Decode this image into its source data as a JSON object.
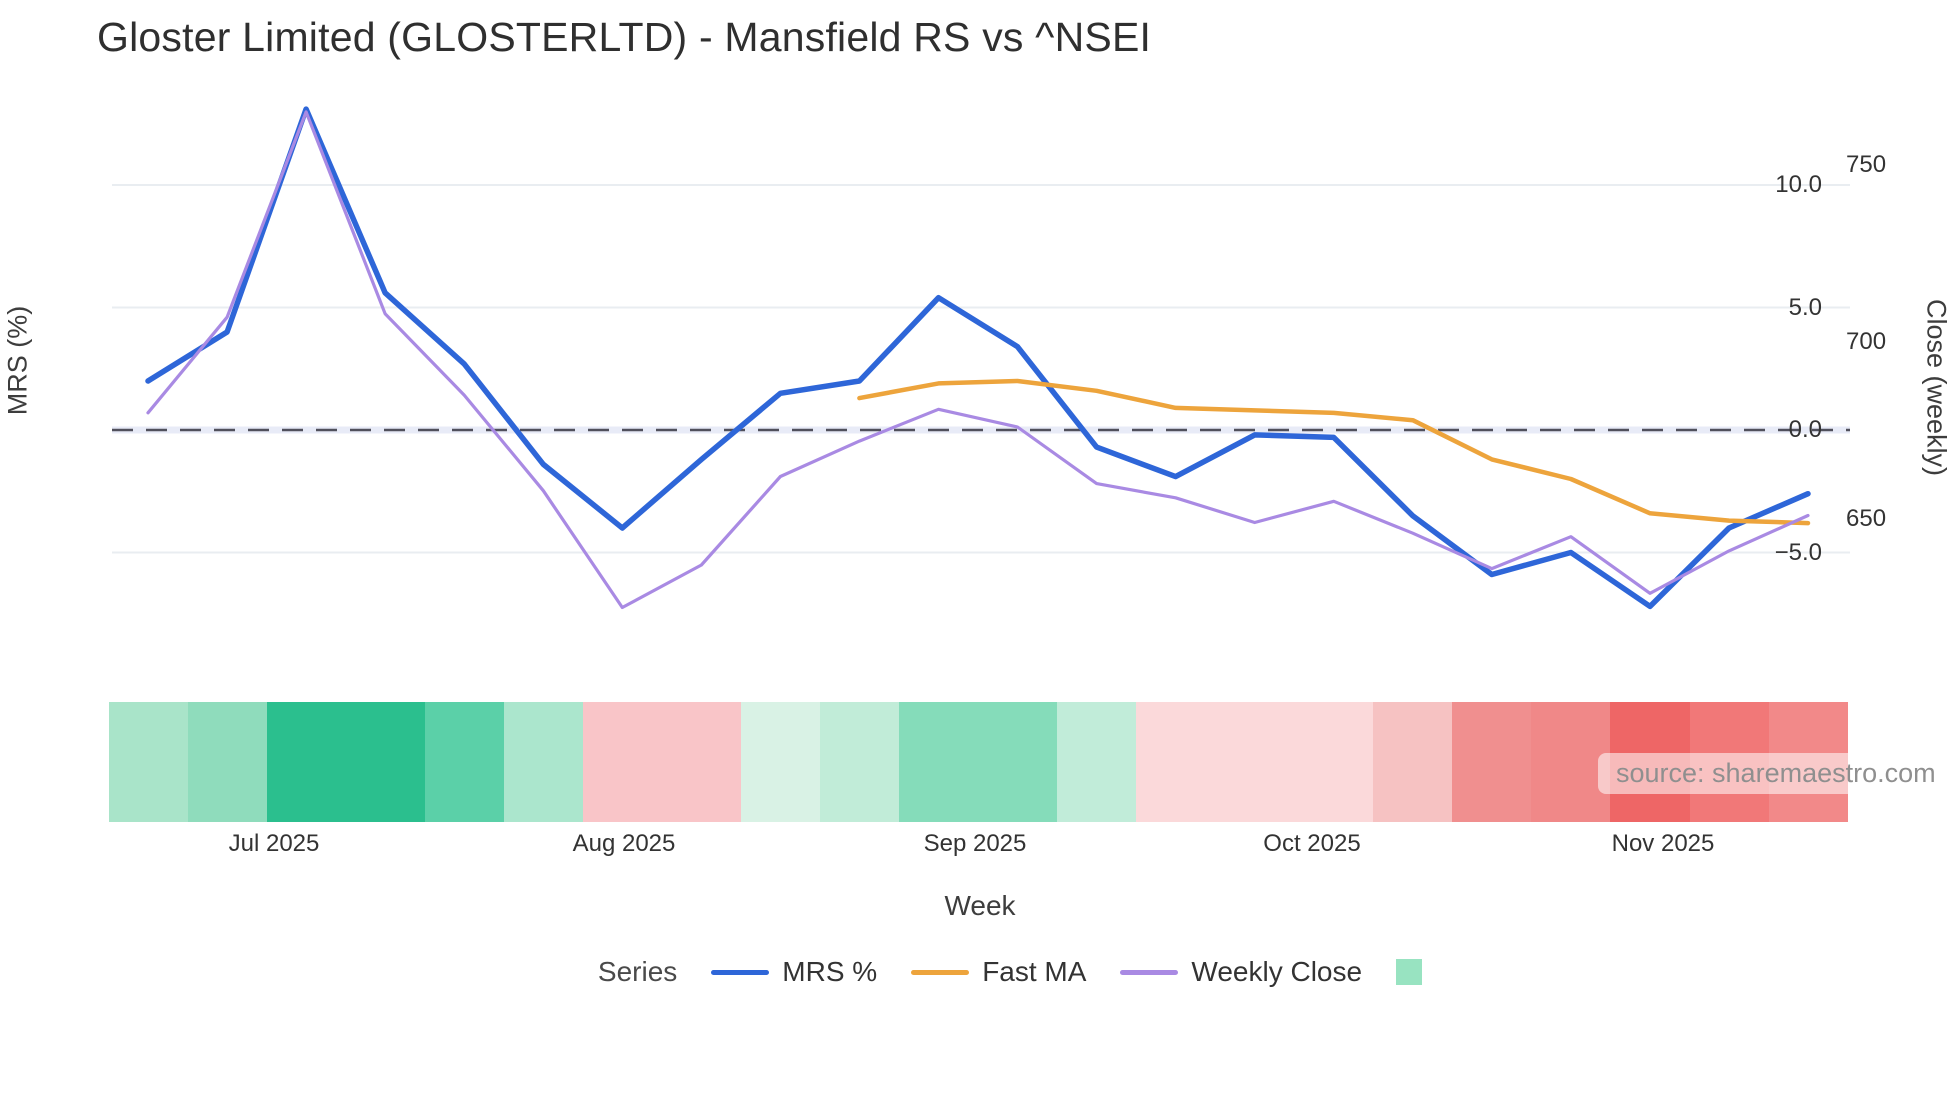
{
  "title": "Gloster Limited (GLOSTERLTD) - Mansfield RS vs ^NSEI",
  "watermark": "source: sharemaestro.com",
  "axes": {
    "left": {
      "title": "MRS (%)",
      "ticks": [
        {
          "label": "10.0",
          "value": 10
        },
        {
          "label": "5.0",
          "value": 5
        },
        {
          "label": "0.0",
          "value": 0
        },
        {
          "label": "−5.0",
          "value": -5
        }
      ]
    },
    "right": {
      "title": "Close (weekly)",
      "ticks": [
        {
          "label": "750",
          "value": 750
        },
        {
          "label": "700",
          "value": 700
        },
        {
          "label": "650",
          "value": 650
        }
      ]
    },
    "x": {
      "title": "Week",
      "ticks": [
        {
          "label": "Jul 2025"
        },
        {
          "label": "Aug 2025"
        },
        {
          "label": "Sep 2025"
        },
        {
          "label": "Oct 2025"
        },
        {
          "label": "Nov 2025"
        }
      ]
    }
  },
  "legend": {
    "title": "Series",
    "items": [
      {
        "label": "MRS %",
        "swatch": "line",
        "color": "#2e66d8"
      },
      {
        "label": "Fast MA",
        "swatch": "line",
        "color": "#eda43c"
      },
      {
        "label": "Weekly Close",
        "swatch": "line",
        "color": "#a98ae3"
      },
      {
        "label": "",
        "swatch": "square",
        "color": "#98e3c1"
      }
    ]
  },
  "chart_data": {
    "type": "line",
    "title": "Gloster Limited (GLOSTERLTD) - Mansfield RS vs ^NSEI",
    "xlabel": "Week",
    "ylabel_left": "MRS (%)",
    "ylabel_right": "Close (weekly)",
    "x_tick_labels": [
      "Jul 2025",
      "Aug 2025",
      "Sep 2025",
      "Oct 2025",
      "Nov 2025"
    ],
    "x_weeks": [
      1,
      2,
      3,
      4,
      5,
      6,
      7,
      8,
      9,
      10,
      11,
      12,
      13,
      14,
      15,
      16,
      17,
      18,
      19,
      20,
      21,
      22
    ],
    "series": [
      {
        "name": "MRS %",
        "axis": "left",
        "color": "#2e66d8",
        "values": [
          2.0,
          4.0,
          13.1,
          5.6,
          2.7,
          -1.4,
          -4.0,
          -1.2,
          1.5,
          2.0,
          5.4,
          3.4,
          -0.7,
          -1.9,
          -0.2,
          -0.3,
          -3.5,
          -5.9,
          -5.0,
          -7.2,
          -4.0,
          -2.6
        ]
      },
      {
        "name": "Fast MA",
        "axis": "left",
        "color": "#eda43c",
        "values": [
          null,
          null,
          null,
          null,
          null,
          null,
          null,
          null,
          null,
          1.3,
          1.9,
          2.0,
          1.6,
          0.9,
          0.8,
          0.7,
          0.4,
          -1.2,
          -2.0,
          -3.4,
          -3.7,
          -3.8
        ]
      },
      {
        "name": "Weekly Close",
        "axis": "right",
        "color": "#a98ae3",
        "values": [
          680,
          707,
          765,
          708,
          685,
          658,
          625,
          637,
          662,
          672,
          681,
          676,
          660,
          656,
          649,
          655,
          646,
          636,
          645,
          629,
          641,
          651
        ]
      }
    ],
    "ylim_left": [
      -9.9,
      14.3
    ],
    "ylim_right": [
      607,
      774
    ],
    "zero_line_left": 0,
    "grid": "horizontal",
    "legend_position": "bottom",
    "heatmap_strip": {
      "colors": [
        "#a9e4c9",
        "#8fdcbc",
        "#2bbf8e",
        "#2bbf8e",
        "#5bd0a8",
        "#abe6cd",
        "#f9c5c8",
        "#f9c5c8",
        "#d9f2e5",
        "#c1ecd8",
        "#85dcba",
        "#85dcba",
        "#c1ecd9",
        "#fbd9da",
        "#fbd9da",
        "#fbd9da",
        "#f6c2c2",
        "#f08f8f",
        "#f08888",
        "#ee6666",
        "#f17878",
        "#f28989"
      ]
    }
  },
  "colors": {
    "mrs_line": "#2e66d8",
    "fast_ma_line": "#eda43c",
    "weekly_close_line": "#a98ae3",
    "zero_dash": "#50505c",
    "zero_band": "#e8ebf7",
    "gridline": "#e9edf1",
    "heatmap_legend_swatch": "#98e3c1"
  }
}
